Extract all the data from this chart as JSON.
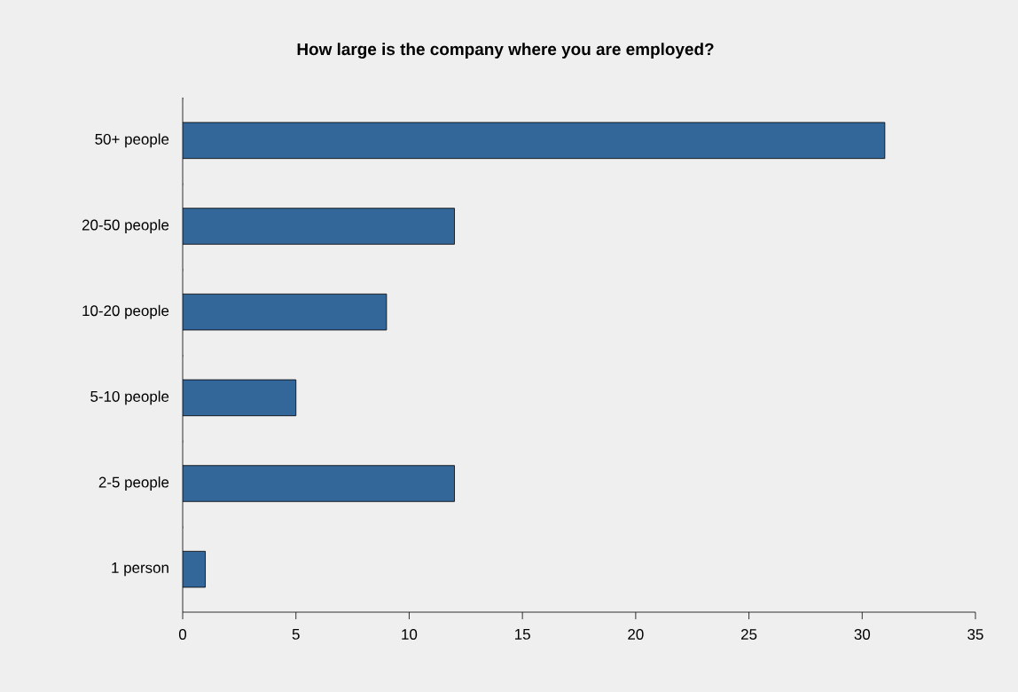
{
  "chart_data": {
    "type": "bar",
    "orientation": "horizontal",
    "title": "How large is the company where you are employed?",
    "categories": [
      "50+ people",
      "20-50 people",
      "10-20 people",
      "5-10 people",
      "2-5 people",
      "1 person"
    ],
    "values": [
      31,
      12,
      9,
      5,
      12,
      1
    ],
    "color": "#336699",
    "xlim": [
      0,
      35
    ],
    "xticks": [
      0,
      5,
      10,
      15,
      20,
      25,
      30,
      35
    ],
    "grid": false
  }
}
